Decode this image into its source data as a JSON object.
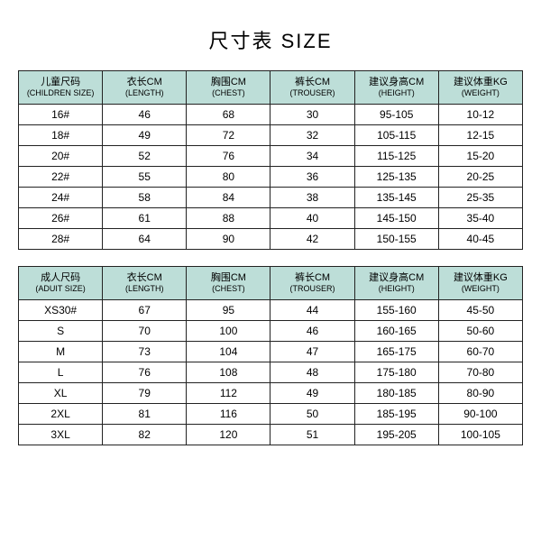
{
  "title": "尺寸表 SIZE",
  "header_bg": "#bdded8",
  "border_color": "#222222",
  "children": {
    "columns": [
      {
        "cn": "儿童尺码",
        "en": "(CHILDREN SIZE)"
      },
      {
        "cn": "衣长CM",
        "en": "(LENGTH)"
      },
      {
        "cn": "胸围CM",
        "en": "(CHEST)"
      },
      {
        "cn": "裤长CM",
        "en": "(TROUSER)"
      },
      {
        "cn": "建议身高CM",
        "en": "(HEIGHT)"
      },
      {
        "cn": "建议体重KG",
        "en": "(WEIGHT)"
      }
    ],
    "rows": [
      [
        "16#",
        "46",
        "68",
        "30",
        "95-105",
        "10-12"
      ],
      [
        "18#",
        "49",
        "72",
        "32",
        "105-115",
        "12-15"
      ],
      [
        "20#",
        "52",
        "76",
        "34",
        "115-125",
        "15-20"
      ],
      [
        "22#",
        "55",
        "80",
        "36",
        "125-135",
        "20-25"
      ],
      [
        "24#",
        "58",
        "84",
        "38",
        "135-145",
        "25-35"
      ],
      [
        "26#",
        "61",
        "88",
        "40",
        "145-150",
        "35-40"
      ],
      [
        "28#",
        "64",
        "90",
        "42",
        "150-155",
        "40-45"
      ]
    ]
  },
  "adult": {
    "columns": [
      {
        "cn": "成人尺码",
        "en": "(ADUIT SIZE)"
      },
      {
        "cn": "衣长CM",
        "en": "(LENGTH)"
      },
      {
        "cn": "胸围CM",
        "en": "(CHEST)"
      },
      {
        "cn": "裤长CM",
        "en": "(TROUSER)"
      },
      {
        "cn": "建议身高CM",
        "en": "(HEIGHT)"
      },
      {
        "cn": "建议体重KG",
        "en": "(WEIGHT)"
      }
    ],
    "rows": [
      [
        "XS30#",
        "67",
        "95",
        "44",
        "155-160",
        "45-50"
      ],
      [
        "S",
        "70",
        "100",
        "46",
        "160-165",
        "50-60"
      ],
      [
        "M",
        "73",
        "104",
        "47",
        "165-175",
        "60-70"
      ],
      [
        "L",
        "76",
        "108",
        "48",
        "175-180",
        "70-80"
      ],
      [
        "XL",
        "79",
        "112",
        "49",
        "180-185",
        "80-90"
      ],
      [
        "2XL",
        "81",
        "116",
        "50",
        "185-195",
        "90-100"
      ],
      [
        "3XL",
        "82",
        "120",
        "51",
        "195-205",
        "100-105"
      ]
    ]
  }
}
